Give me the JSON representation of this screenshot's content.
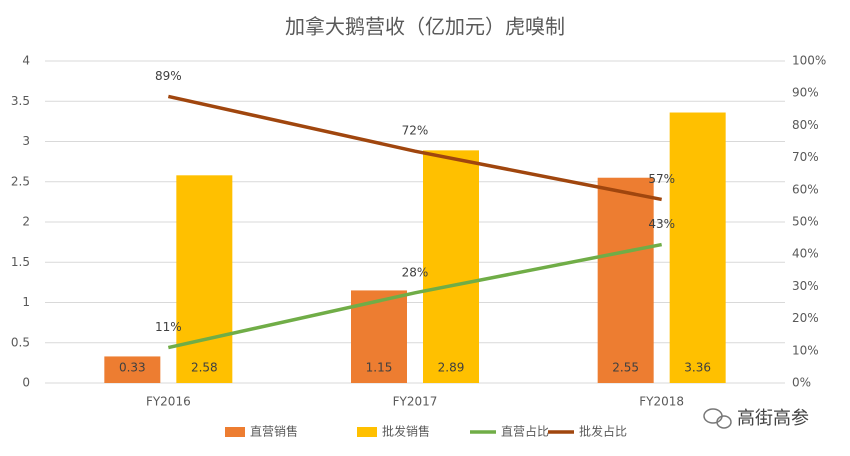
{
  "chart_data": {
    "type": "bar",
    "title": "加拿大鹅营收（亿加元）虎嗅制",
    "categories": [
      "FY2016",
      "FY2017",
      "FY2018"
    ],
    "series": [
      {
        "name": "直营销售",
        "color": "#ED7D31",
        "values": [
          0.33,
          1.15,
          2.55
        ]
      },
      {
        "name": "批发销售",
        "color": "#FFC000",
        "values": [
          2.58,
          2.89,
          3.36
        ]
      },
      {
        "name": "直营占比",
        "type": "line",
        "axis": "y2",
        "color": "#70AD47",
        "values": [
          11,
          28,
          43
        ],
        "value_labels": [
          "11%",
          "28%",
          "43%"
        ]
      },
      {
        "name": "批发占比",
        "type": "line",
        "axis": "y2",
        "color": "#A0460E",
        "values": [
          89,
          72,
          57
        ],
        "value_labels": [
          "89%",
          "72%",
          "57%"
        ]
      }
    ],
    "ylim": [
      0,
      4
    ],
    "yticks": [
      0,
      0.5,
      1,
      1.5,
      2,
      2.5,
      3,
      3.5,
      4
    ],
    "y2lim": [
      0,
      100
    ],
    "y2ticks": [
      {
        "value": 0,
        "label": "0%"
      },
      {
        "value": 10,
        "label": "10%"
      },
      {
        "value": 20,
        "label": "20%"
      },
      {
        "value": 30,
        "label": "30%"
      },
      {
        "value": 40,
        "label": "40%"
      },
      {
        "value": 50,
        "label": "50%"
      },
      {
        "value": 60,
        "label": "60%"
      },
      {
        "value": 70,
        "label": "70%"
      },
      {
        "value": 80,
        "label": "80%"
      },
      {
        "value": 90,
        "label": "90%"
      },
      {
        "value": 100,
        "label": "100%"
      }
    ],
    "grid": true,
    "legend": "bottom",
    "watermark": "高街高参"
  }
}
